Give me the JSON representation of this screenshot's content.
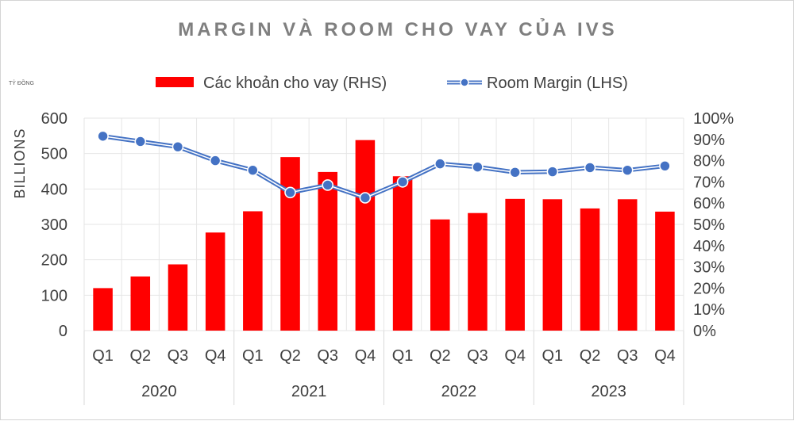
{
  "chart_data": {
    "type": "bar",
    "title": "MARGIN VÀ ROOM CHO VAY CỦA IVS",
    "unit_note": "TỶ ĐỒNG",
    "ylabel": "BILLIONS",
    "categories": [
      "Q1",
      "Q2",
      "Q3",
      "Q4",
      "Q1",
      "Q2",
      "Q3",
      "Q4",
      "Q1",
      "Q2",
      "Q3",
      "Q4",
      "Q1",
      "Q2",
      "Q3",
      "Q4"
    ],
    "groups": [
      {
        "label": "2020",
        "span": 4
      },
      {
        "label": "2021",
        "span": 4
      },
      {
        "label": "2022",
        "span": 4
      },
      {
        "label": "2023",
        "span": 4
      }
    ],
    "left_axis": {
      "min": 0,
      "max": 600,
      "ticks": [
        "0",
        "100",
        "200",
        "300",
        "400",
        "500",
        "600"
      ]
    },
    "right_axis": {
      "min": 0,
      "max": 100,
      "ticks": [
        "0%",
        "10%",
        "20%",
        "30%",
        "40%",
        "50%",
        "60%",
        "70%",
        "80%",
        "90%",
        "100%"
      ]
    },
    "series": [
      {
        "name": "Các khoản cho vay (RHS)",
        "kind": "bar",
        "axis": "left",
        "color": "#ff0000",
        "values": [
          120,
          153,
          187,
          277,
          337,
          490,
          448,
          538,
          436,
          314,
          332,
          372,
          371,
          345,
          371,
          336
        ]
      },
      {
        "name": "Room Margin (LHS)",
        "kind": "line",
        "axis": "right",
        "color": "#4472c4",
        "values": [
          91.5,
          89,
          86.5,
          80,
          75.5,
          65,
          68.5,
          62.5,
          70,
          78.5,
          77,
          74.5,
          74.8,
          76.7,
          75.5,
          77.5
        ]
      }
    ],
    "legend_position": "top",
    "grid": true
  }
}
